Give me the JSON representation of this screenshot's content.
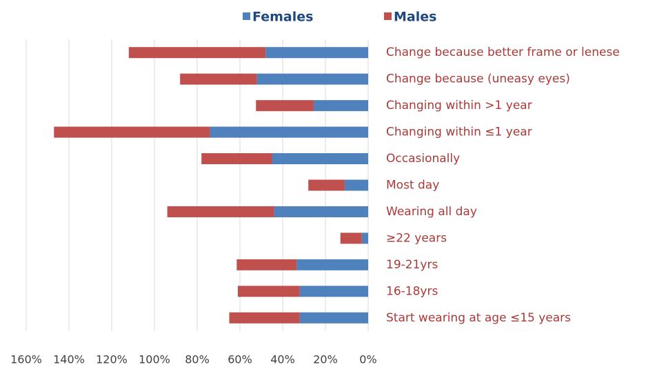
{
  "chart_data": {
    "type": "stacked_barh",
    "categories": [
      "Change because better frame or lenese",
      "Change because (uneasy eyes)",
      "Changing within >1 year",
      "Changing within ≤1 year",
      "Occasionally",
      "Most day",
      "Wearing all day",
      "≥22 years",
      "19-21yrs",
      "16-18yrs",
      "Start wearing at age ≤15 years"
    ],
    "series": [
      {
        "name": "Females",
        "color": "#4f81bd",
        "values": [
          48,
          52,
          25.5,
          74,
          45,
          11,
          44,
          3,
          33.5,
          32,
          32
        ]
      },
      {
        "name": "Males",
        "color": "#c0504d",
        "values": [
          64,
          36,
          27,
          73,
          33,
          17,
          50,
          10,
          28,
          29,
          33
        ]
      }
    ],
    "xlim": [
      0,
      160
    ],
    "x_reversed": true,
    "xticks": [
      {
        "value": 160,
        "label": "160%"
      },
      {
        "value": 140,
        "label": "140%"
      },
      {
        "value": 120,
        "label": "120%"
      },
      {
        "value": 100,
        "label": "100%"
      },
      {
        "value": 80,
        "label": "80%"
      },
      {
        "value": 60,
        "label": "60%"
      },
      {
        "value": 40,
        "label": "40%"
      },
      {
        "value": 20,
        "label": "20%"
      },
      {
        "value": 0,
        "label": "0%"
      }
    ],
    "grid": true,
    "legend": "top"
  }
}
